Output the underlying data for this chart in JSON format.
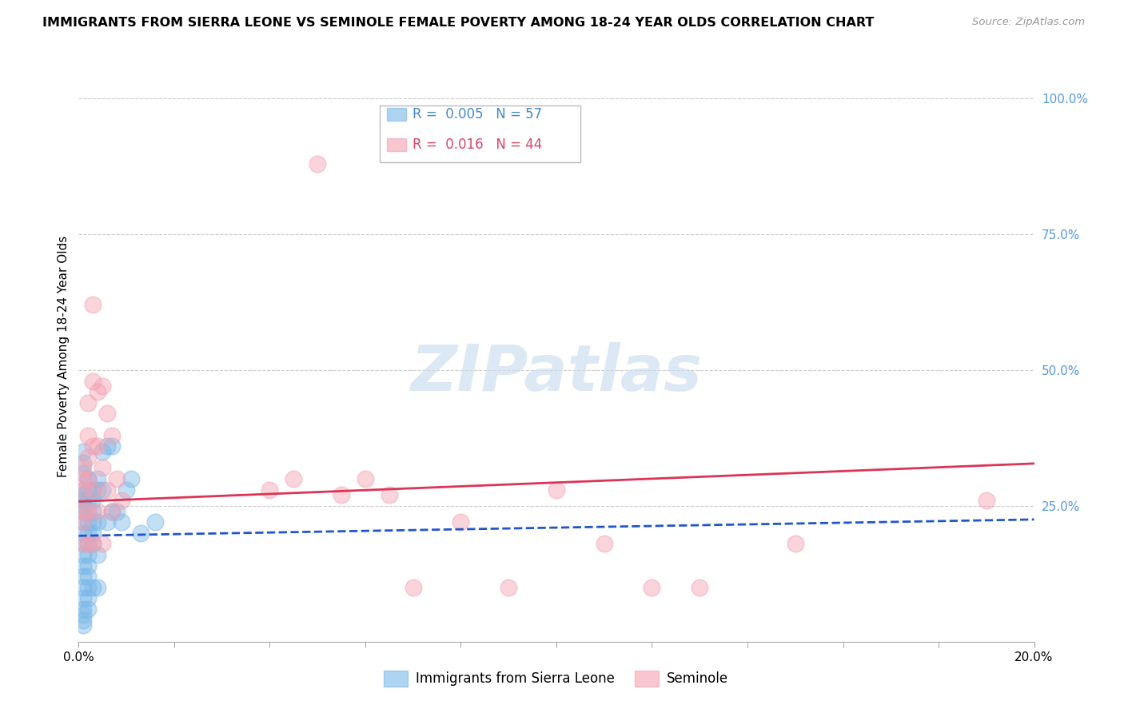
{
  "title": "IMMIGRANTS FROM SIERRA LEONE VS SEMINOLE FEMALE POVERTY AMONG 18-24 YEAR OLDS CORRELATION CHART",
  "source": "Source: ZipAtlas.com",
  "ylabel": "Female Poverty Among 18-24 Year Olds",
  "xlim": [
    0.0,
    0.2
  ],
  "ylim": [
    0.0,
    1.05
  ],
  "ytick_right_labels": [
    "100.0%",
    "75.0%",
    "50.0%",
    "25.0%"
  ],
  "ytick_right_vals": [
    1.0,
    0.75,
    0.5,
    0.25
  ],
  "legend_r1": "0.005",
  "legend_n1": "57",
  "legend_r2": "0.016",
  "legend_n2": "44",
  "color_blue": "#7ab8e8",
  "color_pink": "#f4a0b0",
  "color_blue_line": "#2255cc",
  "color_pink_line": "#dd3355",
  "background_color": "#ffffff",
  "grid_color": "#cccccc",
  "blue_trend_intercept": 0.195,
  "blue_trend_slope": 0.15,
  "pink_trend_intercept": 0.258,
  "pink_trend_slope": 0.35,
  "blue_x": [
    0.001,
    0.001,
    0.001,
    0.001,
    0.001,
    0.001,
    0.001,
    0.001,
    0.001,
    0.001,
    0.001,
    0.001,
    0.001,
    0.001,
    0.001,
    0.001,
    0.001,
    0.001,
    0.001,
    0.001,
    0.002,
    0.002,
    0.002,
    0.002,
    0.002,
    0.002,
    0.002,
    0.002,
    0.002,
    0.002,
    0.002,
    0.002,
    0.002,
    0.003,
    0.003,
    0.003,
    0.003,
    0.003,
    0.003,
    0.003,
    0.004,
    0.004,
    0.004,
    0.004,
    0.004,
    0.005,
    0.005,
    0.006,
    0.006,
    0.007,
    0.007,
    0.008,
    0.009,
    0.01,
    0.011,
    0.013,
    0.016
  ],
  "blue_y": [
    0.28,
    0.27,
    0.26,
    0.25,
    0.24,
    0.22,
    0.2,
    0.18,
    0.16,
    0.14,
    0.12,
    0.1,
    0.08,
    0.06,
    0.05,
    0.04,
    0.03,
    0.31,
    0.33,
    0.35,
    0.3,
    0.28,
    0.26,
    0.24,
    0.22,
    0.2,
    0.18,
    0.16,
    0.14,
    0.12,
    0.1,
    0.08,
    0.06,
    0.28,
    0.26,
    0.24,
    0.22,
    0.2,
    0.18,
    0.1,
    0.3,
    0.28,
    0.22,
    0.16,
    0.1,
    0.35,
    0.28,
    0.36,
    0.22,
    0.36,
    0.24,
    0.24,
    0.22,
    0.28,
    0.3,
    0.2,
    0.22
  ],
  "pink_x": [
    0.001,
    0.001,
    0.001,
    0.001,
    0.001,
    0.001,
    0.002,
    0.002,
    0.002,
    0.002,
    0.002,
    0.002,
    0.003,
    0.003,
    0.003,
    0.003,
    0.003,
    0.004,
    0.004,
    0.004,
    0.005,
    0.005,
    0.005,
    0.006,
    0.006,
    0.007,
    0.007,
    0.008,
    0.009,
    0.04,
    0.045,
    0.05,
    0.055,
    0.06,
    0.065,
    0.07,
    0.08,
    0.09,
    0.1,
    0.11,
    0.12,
    0.13,
    0.15,
    0.19
  ],
  "pink_y": [
    0.32,
    0.3,
    0.28,
    0.24,
    0.22,
    0.18,
    0.44,
    0.38,
    0.34,
    0.3,
    0.24,
    0.18,
    0.62,
    0.48,
    0.36,
    0.28,
    0.18,
    0.46,
    0.36,
    0.24,
    0.47,
    0.32,
    0.18,
    0.42,
    0.28,
    0.38,
    0.24,
    0.3,
    0.26,
    0.28,
    0.3,
    0.88,
    0.27,
    0.3,
    0.27,
    0.1,
    0.22,
    0.1,
    0.28,
    0.18,
    0.1,
    0.1,
    0.18,
    0.26
  ]
}
